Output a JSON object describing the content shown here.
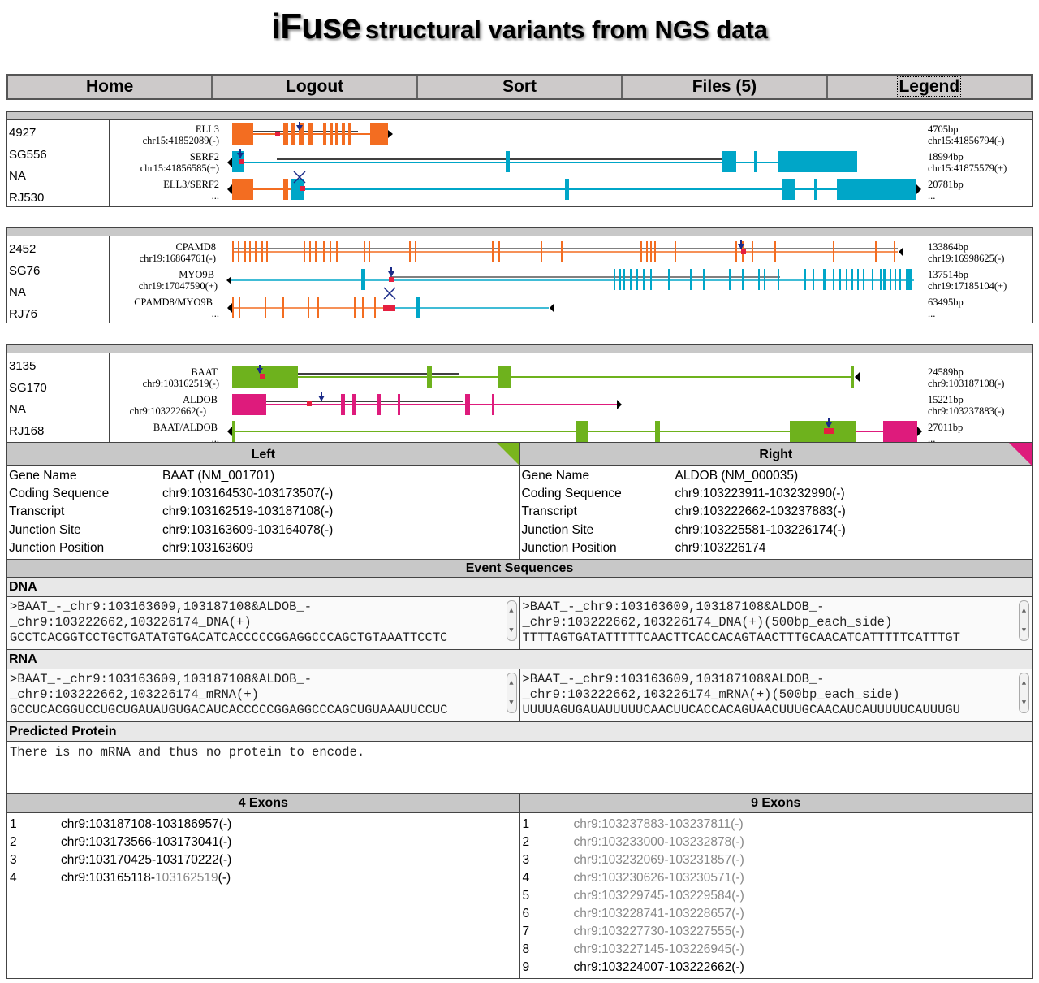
{
  "title": {
    "brand": "iFuse",
    "subtitle": "structural variants from NGS data"
  },
  "nav": [
    "Home",
    "Logout",
    "Sort",
    "Files (5)",
    "Legend"
  ],
  "events": [
    {
      "ids": [
        "4927",
        "SG556",
        "NA",
        "RJ530"
      ],
      "left": {
        "gene": "ELL3",
        "coord": "chr15:41852089(-)",
        "size": "4705bp",
        "end": "chr15:41856794(-)"
      },
      "right": {
        "gene": "SERF2",
        "coord": "chr15:41856585(+)",
        "size": "18994bp",
        "end": "chr15:41875579(+)"
      },
      "fusion": {
        "name": "ELL3/SERF2",
        "size": "20781bp",
        "more": "..."
      },
      "colors": {
        "left": "#f36d21",
        "right": "#00a6c8"
      }
    },
    {
      "ids": [
        "2452",
        "SG76",
        "NA",
        "RJ76"
      ],
      "left": {
        "gene": "CPAMD8",
        "coord": "chr19:16864761(-)",
        "size": "133864bp",
        "end": "chr19:16998625(-)"
      },
      "right": {
        "gene": "MYO9B",
        "coord": "chr19:17047590(+)",
        "size": "137514bp",
        "end": "chr19:17185104(+)"
      },
      "fusion": {
        "name": "CPAMD8/MYO9B",
        "size": "63495bp",
        "more": "..."
      },
      "colors": {
        "left": "#f36d21",
        "right": "#00a6c8"
      }
    },
    {
      "ids": [
        "3135",
        "SG170",
        "NA",
        "RJ168"
      ],
      "left": {
        "gene": "BAAT",
        "coord": "chr9:103162519(-)",
        "size": "24589bp",
        "end": "chr9:103187108(-)"
      },
      "right": {
        "gene": "ALDOB",
        "coord": "chr9:103222662(-)",
        "size": "15221bp",
        "end": "chr9:103237883(-)"
      },
      "fusion": {
        "name": "BAAT/ALDOB",
        "size": "27011bp",
        "more": "..."
      },
      "colors": {
        "left": "#6eb21d",
        "right": "#de1b7c"
      }
    }
  ],
  "details": {
    "left_header": "Left",
    "right_header": "Right",
    "keys": [
      "Gene Name",
      "Coding Sequence",
      "Transcript",
      "Junction Site",
      "Junction Position"
    ],
    "left": [
      "BAAT (NM_001701)",
      "chr9:103164530-103173507(-)",
      "chr9:103162519-103187108(-)",
      "chr9:103163609-103164078(-)",
      "chr9:103163609"
    ],
    "right": [
      "ALDOB (NM_000035)",
      "chr9:103223911-103232990(-)",
      "chr9:103222662-103237883(-)",
      "chr9:103225581-103226174(-)",
      "chr9:103226174"
    ],
    "event_sequences": "Event Sequences",
    "dna_label": "DNA",
    "dna_left": [
      ">BAAT_-_chr9:103163609,103187108&ALDOB_-",
      "_chr9:103222662,103226174_DNA(+)",
      "GCCTCACGGTCCTGCTGATATGTGACATCACCCCCGGAGGCCCAGCTGTAAATTCCTC"
    ],
    "dna_right": [
      ">BAAT_-_chr9:103163609,103187108&ALDOB_-",
      "_chr9:103222662,103226174_DNA(+)(500bp_each_side)",
      "TTTTAGTGATATTTTTCAACTTCACCACAGTAACTTTGCAACATCATTTTTCATTTGT"
    ],
    "rna_label": "RNA",
    "rna_left": [
      ">BAAT_-_chr9:103163609,103187108&ALDOB_-",
      "_chr9:103222662,103226174_mRNA(+)",
      "GCCUCACGGUCCUGCUGAUAUGUGACAUCACCCCCGGAGGCCCAGCUGUAAAUUCCUC"
    ],
    "rna_right": [
      ">BAAT_-_chr9:103163609,103187108&ALDOB_-",
      "_chr9:103222662,103226174_mRNA(+)(500bp_each_side)",
      "UUUUAGUGAUAUUUUUCAACUUCACCACAGUAACUUUGCAACAUCAUUUUUCAUUUGU"
    ],
    "protein_label": "Predicted Protein",
    "protein_text": "There is no mRNA and thus no protein to encode.",
    "left_exons_header": "4 Exons",
    "right_exons_header": "9 Exons"
  },
  "left_exons": [
    {
      "n": "1",
      "a": "chr9:103187108-103186957(-)",
      "b": "",
      "c": ""
    },
    {
      "n": "2",
      "a": "chr9:103173566-103173041(-)",
      "b": "",
      "c": ""
    },
    {
      "n": "3",
      "a": "chr9:103170425-103170222(-)",
      "b": "",
      "c": ""
    },
    {
      "n": "4",
      "a": "chr9:103165118-",
      "b": "103162519",
      "c": "(-)"
    }
  ],
  "right_exons": [
    {
      "n": "1",
      "g": "chr9:103237883-103237811(-)"
    },
    {
      "n": "2",
      "g": "chr9:103233000-103232878(-)"
    },
    {
      "n": "3",
      "g": "chr9:103232069-103231857(-)"
    },
    {
      "n": "4",
      "g": "chr9:103230626-103230571(-)"
    },
    {
      "n": "5",
      "g": "chr9:103229745-103229584(-)"
    },
    {
      "n": "6",
      "g": "chr9:103228741-103228657(-)"
    },
    {
      "n": "7",
      "g": "chr9:103227730-103227555(-)"
    },
    {
      "n": "8",
      "g": "chr9:103227145-103226945(-)"
    },
    {
      "n": "9",
      "k": "chr9:103224007-103222662(-)"
    }
  ]
}
